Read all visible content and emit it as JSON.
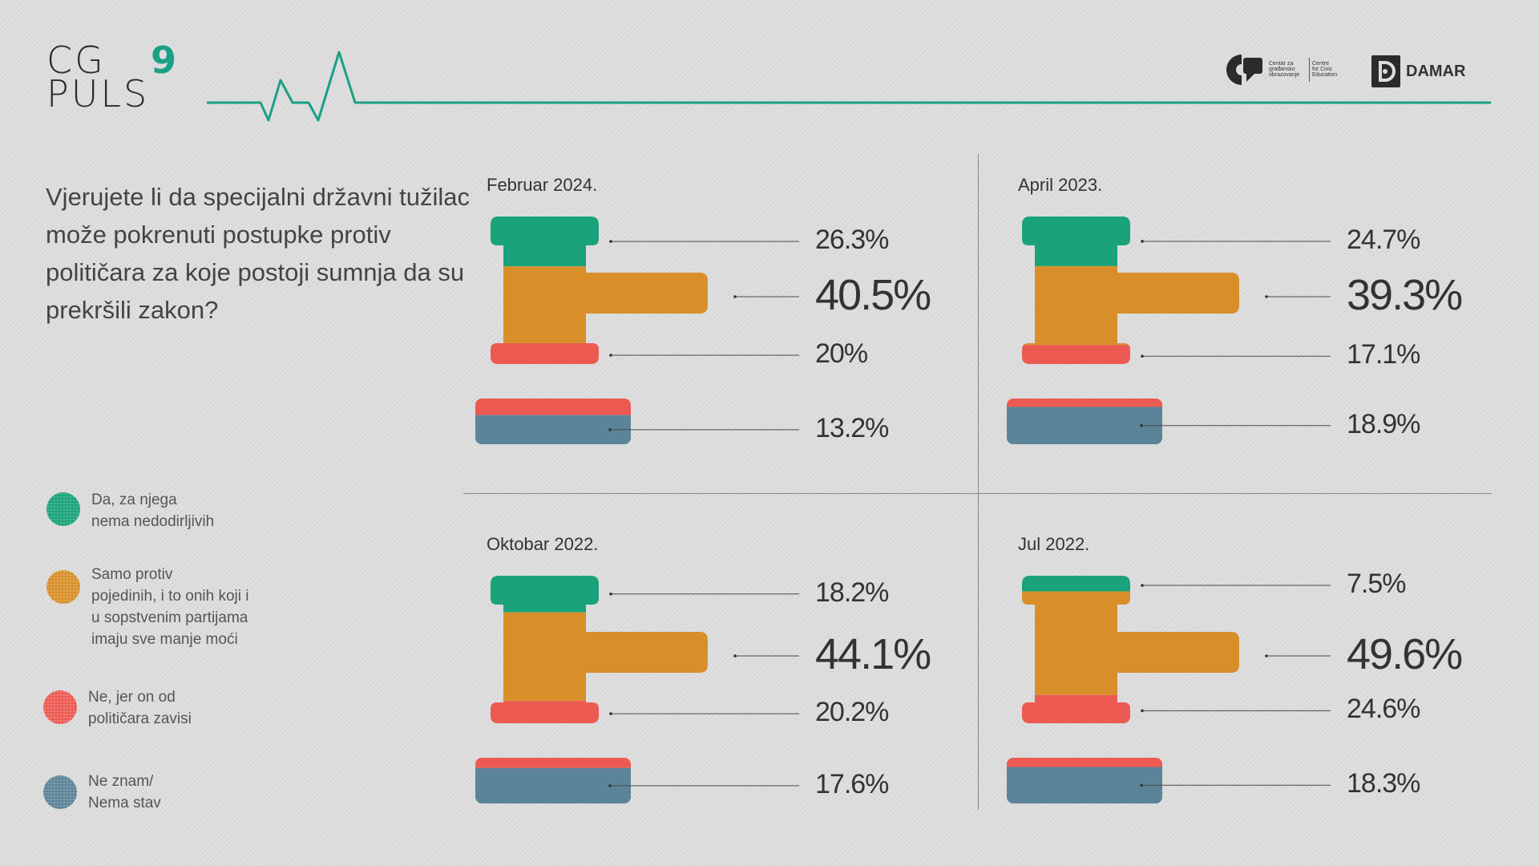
{
  "brand": {
    "logo_line1": "CG",
    "logo_number": "9",
    "logo_line2": "PULS",
    "cgo_line1": "Centar za\ngrađansko\nobrazovanje",
    "cgo_line2": "Centre\nfor Civic\nEducation",
    "damar": "DAMAR",
    "pulse_color": "#1aa085"
  },
  "question": "Vjerujete li da specijalni državni tužilac može pokrenuti postupke protiv političara za koje postoji sumnja da su prekršili zakon?",
  "legend": [
    {
      "label": "Da, za njega\nnema nedodirljivih",
      "color": "#1aa37a"
    },
    {
      "label": "Samo protiv\npojedinih, i to onih koji i\nu sopstvenim partijama\nimaju sve manje moći",
      "color": "#d88f2a"
    },
    {
      "label": "Ne, jer on od\npolitičara zavisi",
      "color": "#ec5a52"
    },
    {
      "label": "Ne znam/\nNema stav",
      "color": "#5c8499"
    }
  ],
  "chart_data": {
    "type": "bar",
    "categories": [
      "Da, za njega nema nedodirljivih",
      "Samo protiv pojedinih, i to onih koji i u sopstvenim partijama imaju sve manje moći",
      "Ne, jer on od političara zavisi",
      "Ne znam/ Nema stav"
    ],
    "colors": [
      "#1aa37a",
      "#d88f2a",
      "#ec5a52",
      "#5c8499"
    ],
    "panels": [
      {
        "title": "Februar 2024.",
        "values": [
          26.3,
          40.5,
          20,
          13.2
        ],
        "labels": [
          "26.3%",
          "40.5%",
          "20%",
          "13.2%"
        ]
      },
      {
        "title": "April 2023.",
        "values": [
          24.7,
          39.3,
          17.1,
          18.9
        ],
        "labels": [
          "24.7%",
          "39.3%",
          "17.1%",
          "18.9%"
        ]
      },
      {
        "title": "Oktobar 2022.",
        "values": [
          18.2,
          44.1,
          20.2,
          17.6
        ],
        "labels": [
          "18.2%",
          "44.1%",
          "20.2%",
          "17.6%"
        ]
      },
      {
        "title": "Jul 2022.",
        "values": [
          7.5,
          49.6,
          24.6,
          18.3
        ],
        "labels": [
          "7.5%",
          "49.6%",
          "24.6%",
          "18.3%"
        ]
      }
    ]
  }
}
